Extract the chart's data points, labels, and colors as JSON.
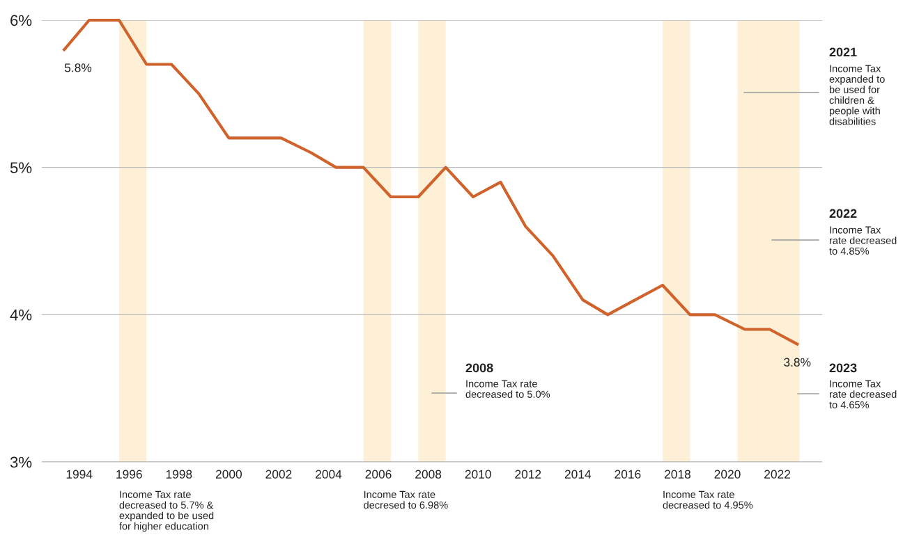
{
  "chart_data": {
    "type": "line",
    "x": [
      1993.4,
      1994.4,
      1995.6,
      1996.7,
      1997.7,
      1998.8,
      2000.0,
      2001.1,
      2002.1,
      2003.3,
      2004.3,
      2005.4,
      2006.5,
      2007.6,
      2008.7,
      2009.8,
      2010.9,
      2011.9,
      2013.0,
      2014.2,
      2015.2,
      2016.3,
      2017.4,
      2018.5,
      2019.5,
      2020.7,
      2021.7,
      2022.8
    ],
    "series": [
      {
        "color": "#d0622c",
        "values": [
          5.8,
          6.0,
          6.0,
          5.7,
          5.7,
          5.5,
          5.2,
          5.2,
          5.2,
          5.1,
          5.0,
          5.0,
          4.8,
          4.8,
          5.0,
          4.8,
          4.9,
          4.6,
          4.4,
          4.1,
          4.0,
          4.1,
          4.2,
          4.0,
          4.0,
          3.9,
          3.9,
          3.8
        ]
      }
    ],
    "xlim": [
      1992.5,
      2023.8
    ],
    "xticks": [
      1994,
      1996,
      1998,
      2000,
      2002,
      2004,
      2006,
      2008,
      2010,
      2012,
      2014,
      2016,
      2018,
      2020,
      2022
    ],
    "ylim": [
      3,
      6
    ],
    "yticks": [
      {
        "value": 3,
        "label": "3%"
      },
      {
        "value": 4,
        "label": "4%"
      },
      {
        "value": 5,
        "label": "5%"
      },
      {
        "value": 6,
        "label": "6%"
      }
    ],
    "grid": "y",
    "marker": "none",
    "line_style": "solid",
    "bands": [
      {
        "axis": "x",
        "from": 1995.6,
        "to": 1996.7,
        "color": "#fdf0d6",
        "label": "Income Tax rate\ndecreased to 5.7% &\nexpanded to be used\nfor higher education"
      },
      {
        "axis": "x",
        "from": 2005.4,
        "to": 2006.5,
        "color": "#fdf0d6",
        "label": "Income Tax rate\ndecresed to 6.98%"
      },
      {
        "axis": "x",
        "from": 2007.6,
        "to": 2008.7,
        "color": "#fdf0d6"
      },
      {
        "axis": "x",
        "from": 2017.4,
        "to": 2018.5,
        "color": "#fdf0d6",
        "label": "Income Tax rate\ndecreased to 4.95%"
      },
      {
        "axis": "x",
        "from": 2020.4,
        "to": 2022.9,
        "color": "#fdf0d6"
      }
    ],
    "annotations": [
      {
        "text": "5.8%",
        "x": 1993.4,
        "y": 5.8
      },
      {
        "text": "3.8%",
        "x": 2022.8,
        "y": 3.8
      },
      "2008",
      "Income Tax rate\ndecreased to 5.0%",
      "2021",
      "Income Tax\nexpanded to\nbe used for\nchildren &\npeople with\ndisabilities",
      "2022",
      "Income Tax\nrate decreased\nto 4.85%",
      "2023",
      "Income Tax\nrate decreased\nto 4.65%"
    ]
  }
}
